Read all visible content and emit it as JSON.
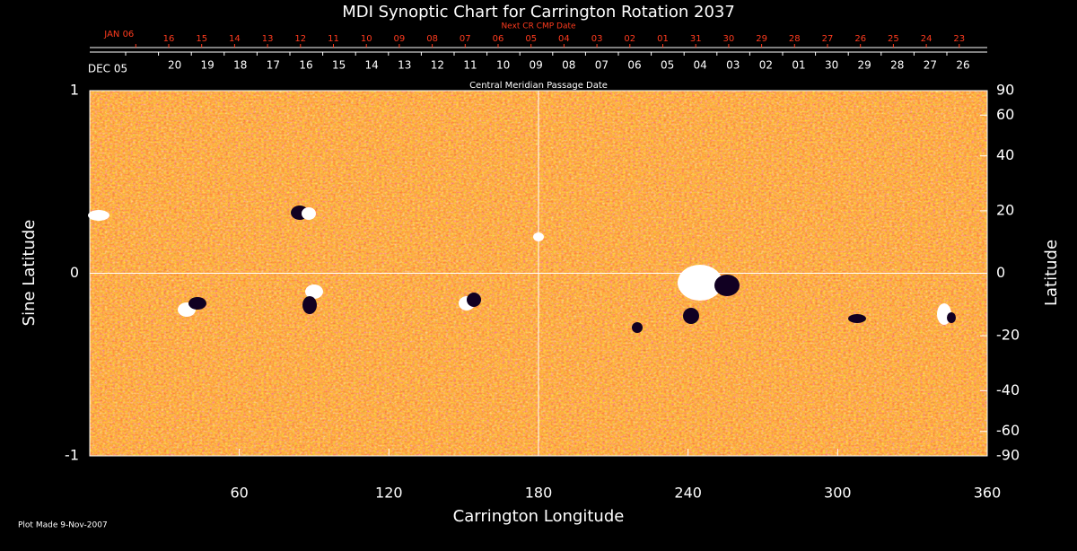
{
  "chart_data": {
    "type": "image",
    "title": "MDI Synoptic Chart for Carrington Rotation 2037",
    "top_axis_title": "Next CR CMP Date",
    "top_dates": [
      "JAN 06",
      "16",
      "15",
      "14",
      "13",
      "12",
      "11",
      "10",
      "09",
      "08",
      "07",
      "06",
      "05",
      "04",
      "03",
      "02",
      "01",
      "31",
      "30",
      "29",
      "28",
      "27",
      "26",
      "25",
      "24",
      "23"
    ],
    "top_color": "#ff3b1e",
    "date_axis_title": "Central Meridian Passage Date",
    "cmp_dates": [
      "DEC 05",
      "20",
      "19",
      "18",
      "17",
      "16",
      "15",
      "14",
      "13",
      "12",
      "11",
      "10",
      "09",
      "08",
      "07",
      "06",
      "05",
      "04",
      "03",
      "02",
      "01",
      "30",
      "29",
      "28",
      "27",
      "26"
    ],
    "xlabel": "Carrington Longitude",
    "ylabel": "Sine Latitude",
    "y2label": "Latitude",
    "xlim": [
      0,
      360
    ],
    "xticks": [
      60,
      120,
      180,
      240,
      300,
      360
    ],
    "ylim": [
      -1,
      1
    ],
    "yticks": [
      -1,
      0,
      1
    ],
    "y2scale": "sine",
    "y2ticks": [
      90,
      60,
      40,
      20,
      0,
      -20,
      -40,
      -60,
      -90
    ],
    "reference_lines": {
      "x": 180,
      "y": 0
    },
    "note": "Plot Made  9-Nov-2007"
  }
}
